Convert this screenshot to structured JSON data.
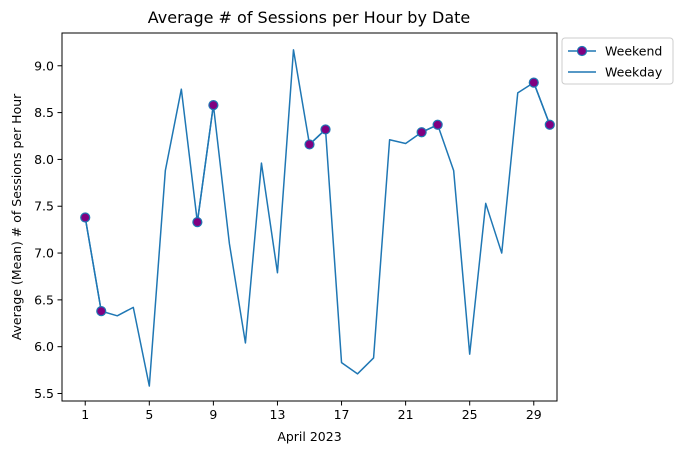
{
  "chart_data": {
    "type": "line",
    "title": "Average # of Sessions per Hour by Date",
    "xlabel": "April 2023",
    "ylabel": "Average (Mean) # of Sessions per Hour",
    "xlim": [
      -0.45,
      30.45
    ],
    "ylim": [
      5.42,
      9.35
    ],
    "xticks": [
      1,
      5,
      9,
      13,
      17,
      21,
      25,
      29
    ],
    "yticks": [
      5.5,
      6.0,
      6.5,
      7.0,
      7.5,
      8.0,
      8.5,
      9.0
    ],
    "ytick_labels": [
      "5.5",
      "6.0",
      "6.5",
      "7.0",
      "7.5",
      "8.0",
      "8.5",
      "9.0"
    ],
    "grid": false,
    "legend_position": "outside-top-right",
    "colors": {
      "line": "#1f77b4",
      "marker_face": "#800080",
      "marker_edge": "#1f77b4"
    },
    "series": [
      {
        "name": "Weekend",
        "style": "markers",
        "x": [
          1,
          2,
          8,
          9,
          15,
          16,
          22,
          23,
          29,
          30
        ],
        "values": [
          7.38,
          6.38,
          7.33,
          8.58,
          8.16,
          8.32,
          8.29,
          8.37,
          8.82,
          8.37
        ]
      },
      {
        "name": "Weekday",
        "style": "line",
        "x": [
          1,
          2,
          3,
          4,
          5,
          6,
          7,
          8,
          9,
          10,
          11,
          12,
          13,
          14,
          15,
          16,
          17,
          18,
          19,
          20,
          21,
          22,
          23,
          24,
          25,
          26,
          27,
          28,
          29,
          30
        ],
        "values": [
          7.38,
          6.38,
          6.33,
          6.42,
          5.58,
          7.88,
          8.75,
          7.33,
          8.58,
          7.1,
          6.04,
          7.96,
          6.79,
          9.17,
          8.16,
          8.32,
          5.83,
          5.71,
          5.88,
          8.21,
          8.17,
          8.29,
          8.37,
          7.88,
          5.92,
          7.53,
          7.0,
          8.71,
          8.82,
          8.37
        ]
      }
    ]
  }
}
